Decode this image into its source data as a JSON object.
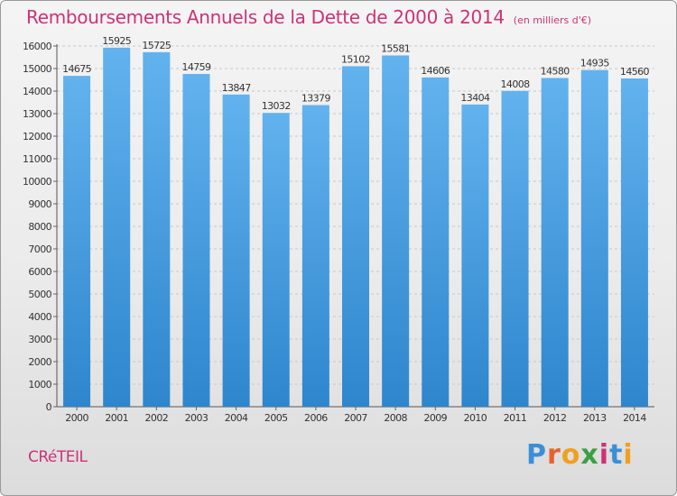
{
  "title": "Remboursements Annuels de la Dette de 2000 à 2014",
  "subtitle": "(en milliers d'€)",
  "city": "CRéTEIL",
  "logo": {
    "letters": [
      "P",
      "r",
      "o",
      "x",
      "i",
      "t",
      "i"
    ],
    "colors": [
      "#3a8fd6",
      "#e8622c",
      "#f0a020",
      "#3aa040",
      "#cc3377",
      "#3a8fd6",
      "#f0a020"
    ]
  },
  "colors": {
    "title": "#cc3377",
    "bar_top": "#62b2ee",
    "bar_bottom": "#2e86cd",
    "grid": "#c8c8c8"
  },
  "chart_data": {
    "type": "bar",
    "categories": [
      "2000",
      "2001",
      "2002",
      "2003",
      "2004",
      "2005",
      "2006",
      "2007",
      "2008",
      "2009",
      "2010",
      "2011",
      "2012",
      "2013",
      "2014"
    ],
    "values": [
      14675,
      15925,
      15725,
      14759,
      13847,
      13032,
      13379,
      15102,
      15581,
      14606,
      13404,
      14008,
      14580,
      14935,
      14560
    ],
    "ylim": [
      0,
      16000
    ],
    "yticks": [
      "0",
      "1000",
      "2000",
      "3000",
      "4000",
      "5000",
      "6000",
      "7000",
      "8000",
      "9000",
      "10000",
      "11000",
      "12000",
      "13000",
      "14000",
      "15000",
      "16000"
    ],
    "title": "Remboursements Annuels de la Dette de 2000 à 2014",
    "xlabel": "",
    "ylabel": "",
    "grid": true,
    "data_labels": true
  }
}
